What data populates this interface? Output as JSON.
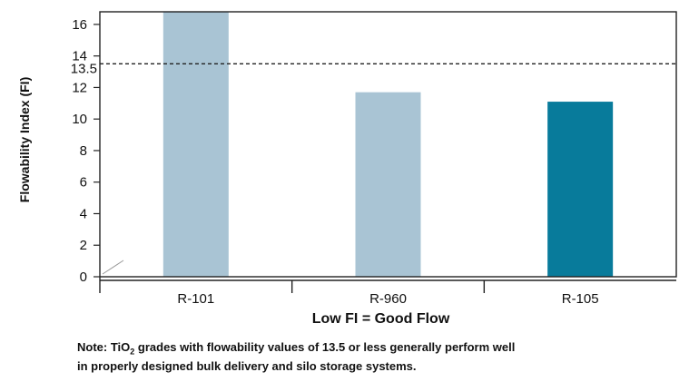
{
  "chart_data": {
    "type": "bar",
    "categories": [
      "R-101",
      "R-960",
      "R-105"
    ],
    "values": [
      16.8,
      11.7,
      11.1
    ],
    "bar_colors": [
      "#a9c4d4",
      "#a9c4d4",
      "#087b9b"
    ],
    "ylabel": "Flowability Index (FI)",
    "xlabel": "Low FI = Good Flow",
    "ylim": [
      0,
      16.8
    ],
    "yticks": [
      0,
      2,
      4,
      6,
      8,
      10,
      12,
      14,
      16
    ],
    "reference_line": {
      "value": 13.5,
      "label": "13.5",
      "style": "dashed"
    },
    "grid": false
  },
  "note": {
    "line1_prefix": "Note: TiO",
    "line1_sub": "2",
    "line1_suffix": " grades with flowability values of 13.5 or less generally perform well",
    "line2": "in properly designed bulk delivery and silo storage systems."
  }
}
